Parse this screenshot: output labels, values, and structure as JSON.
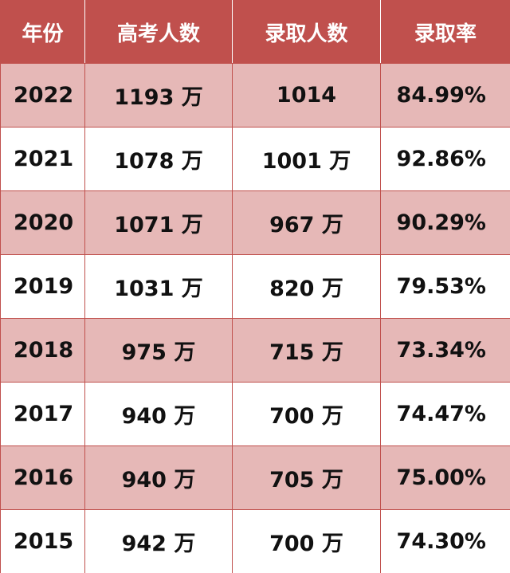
{
  "table": {
    "headers": [
      "年份",
      "高考人数",
      "录取人数",
      "录取率"
    ],
    "rows": [
      [
        "2022",
        "1193 万",
        "1014",
        "84.99%"
      ],
      [
        "2021",
        "1078 万",
        "1001 万",
        "92.86%"
      ],
      [
        "2020",
        "1071 万",
        "967 万",
        "90.29%"
      ],
      [
        "2019",
        "1031 万",
        "820 万",
        "79.53%"
      ],
      [
        "2018",
        "975 万",
        "715 万",
        "73.34%"
      ],
      [
        "2017",
        "940 万",
        "700 万",
        "74.47%"
      ],
      [
        "2016",
        "940 万",
        "705 万",
        "75.00%"
      ],
      [
        "2015",
        "942 万",
        "700 万",
        "74.30%"
      ]
    ]
  },
  "colors": {
    "header_bg": "#c0504d",
    "stripe_bg": "#e6b8b7",
    "plain_bg": "#ffffff"
  }
}
